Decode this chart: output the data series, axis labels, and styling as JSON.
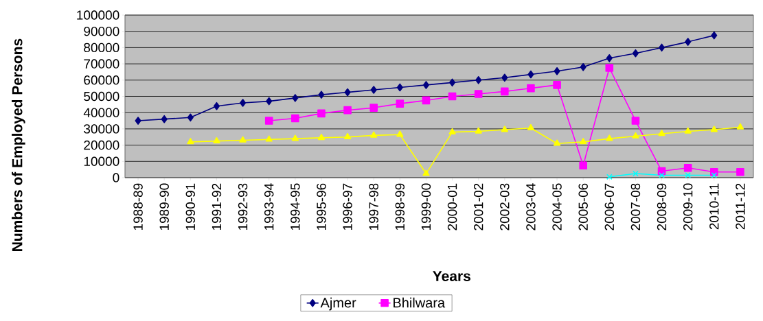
{
  "chart_data": {
    "type": "line",
    "xlabel": "Years",
    "ylabel": "Numbers of Employed Persons",
    "categories": [
      "1988-89",
      "1989-90",
      "1990-91",
      "1991-92",
      "1992-93",
      "1993-94",
      "1994-95",
      "1995-96",
      "1996-97",
      "1997-98",
      "1998-99",
      "1999-00",
      "2000-01",
      "2001-02",
      "2002-03",
      "2003-04",
      "2004-05",
      "2005-06",
      "2006-07",
      "2007-08",
      "2008-09",
      "2009-10",
      "2010-11",
      "2011-12"
    ],
    "series": [
      {
        "name": "Ajmer",
        "color": "#000080",
        "marker": "diamond",
        "values": [
          35000,
          36000,
          37000,
          44000,
          46000,
          47000,
          49000,
          51000,
          52500,
          54000,
          55500,
          57000,
          58500,
          60000,
          61500,
          63500,
          65500,
          68000,
          73500,
          76500,
          80000,
          83500,
          87500,
          null
        ]
      },
      {
        "name": "Bhilwara",
        "color": "#ff00ff",
        "marker": "square",
        "values": [
          null,
          null,
          null,
          null,
          null,
          35000,
          36500,
          39500,
          41500,
          43000,
          45500,
          47500,
          50000,
          51500,
          53000,
          55000,
          57000,
          7500,
          67500,
          35000,
          4000,
          6000,
          3500,
          3500
        ]
      },
      {
        "color": "#ffff00",
        "marker": "triangle",
        "values": [
          null,
          null,
          22000,
          22500,
          23000,
          23500,
          24000,
          24500,
          25000,
          26000,
          26500,
          2500,
          28000,
          28500,
          29500,
          30500,
          21000,
          22000,
          24000,
          25500,
          27000,
          28500,
          29500,
          31000
        ]
      },
      {
        "color": "#00ffff",
        "marker": "cross",
        "values": [
          null,
          null,
          null,
          null,
          null,
          null,
          null,
          null,
          null,
          null,
          null,
          null,
          null,
          null,
          null,
          null,
          null,
          null,
          500,
          2500,
          1500,
          1500,
          1500,
          null
        ]
      }
    ],
    "ylim": [
      0,
      100000
    ],
    "yticks": [
      0,
      10000,
      20000,
      30000,
      40000,
      50000,
      60000,
      70000,
      80000,
      90000,
      100000
    ],
    "grid": "y",
    "legend": "bottom"
  }
}
